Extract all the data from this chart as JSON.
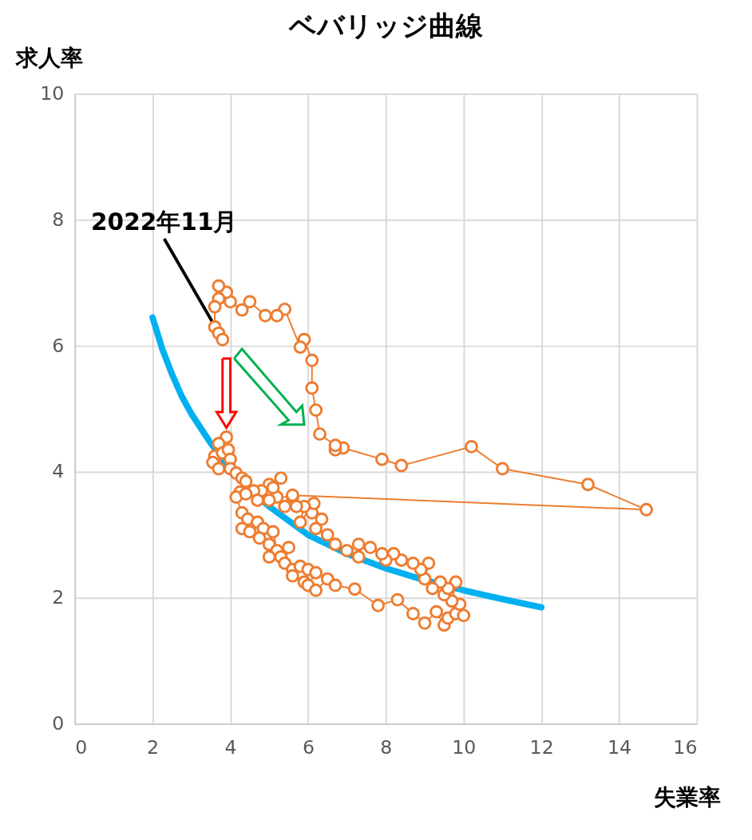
{
  "chart_data": {
    "type": "line",
    "title": "ベバリッジ曲線",
    "xlabel": "失業率",
    "ylabel": "求人率",
    "xlim": [
      0,
      16
    ],
    "xticks": [
      0,
      2,
      4,
      6,
      8,
      10,
      12,
      14,
      16
    ],
    "ylim": [
      0,
      10
    ],
    "yticks": [
      0,
      2,
      4,
      6,
      8,
      10
    ],
    "grid": true,
    "marker": "circle",
    "annotations": [
      {
        "text": "2022年11月",
        "x": 3.8,
        "y": 6.1
      }
    ],
    "series": [
      {
        "color": "#00b0f0",
        "marker": "none",
        "x": [
          2,
          2.25,
          2.5,
          2.75,
          3,
          3.5,
          4,
          4.5,
          5,
          6,
          7,
          8,
          9,
          10,
          11,
          12
        ],
        "values": [
          6.45,
          5.95,
          5.55,
          5.2,
          4.92,
          4.45,
          4.05,
          3.72,
          3.45,
          3.0,
          2.7,
          2.47,
          2.28,
          2.12,
          1.98,
          1.85
        ]
      },
      {
        "color": "#ed7d31",
        "x": [
          3.9,
          3.7,
          3.6,
          3.55,
          3.7,
          3.8,
          3.95,
          4.0,
          4.0,
          4.15,
          4.3,
          4.4,
          4.25,
          4.15,
          4.3,
          4.45,
          4.3,
          4.5,
          4.7,
          4.85,
          4.75,
          5.0,
          5.1,
          5.2,
          5.0,
          5.3,
          5.5,
          5.4,
          5.6,
          5.8,
          5.6,
          5.9,
          6.0,
          6.2,
          6.0,
          6.2,
          6.5,
          6.7,
          7.2,
          7.8,
          8.3,
          8.7,
          9.0,
          9.3,
          9.5,
          9.6,
          9.8,
          10.0,
          9.9,
          9.7,
          9.8,
          9.5,
          9.6,
          9.4,
          9.2,
          9.0,
          9.1,
          8.9,
          8.7,
          8.4,
          8.2,
          8.0,
          7.9,
          7.6,
          7.3,
          7.3,
          7.0,
          6.7,
          6.5,
          6.2,
          6.35,
          6.1,
          6.15,
          5.8,
          5.9,
          5.6,
          5.7,
          5.4,
          5.2,
          5.0,
          5.3,
          5.1,
          4.8,
          4.6,
          4.4,
          4.7,
          5.0,
          5.6,
          14.7,
          13.2,
          11.0,
          10.2,
          8.4,
          7.9,
          6.9,
          6.7,
          6.7,
          6.3,
          6.2,
          6.1,
          6.1,
          5.9,
          5.8,
          5.4,
          5.2,
          4.9,
          4.5,
          4.3,
          4.0,
          3.9,
          3.7,
          3.7,
          3.6,
          3.6,
          3.7,
          3.8
        ],
        "values": [
          4.55,
          4.45,
          4.25,
          4.15,
          4.05,
          4.3,
          4.35,
          4.2,
          4.05,
          3.98,
          3.9,
          3.85,
          3.68,
          3.6,
          3.35,
          3.25,
          3.1,
          3.05,
          3.2,
          3.1,
          2.95,
          2.85,
          3.05,
          2.75,
          2.65,
          2.65,
          2.8,
          2.55,
          2.45,
          2.5,
          2.35,
          2.25,
          2.45,
          2.4,
          2.2,
          2.12,
          2.3,
          2.2,
          2.14,
          1.88,
          1.97,
          1.75,
          1.6,
          1.78,
          1.57,
          1.68,
          1.75,
          1.72,
          1.9,
          1.95,
          2.25,
          2.05,
          2.15,
          2.25,
          2.15,
          2.3,
          2.55,
          2.45,
          2.55,
          2.6,
          2.7,
          2.6,
          2.7,
          2.8,
          2.85,
          2.65,
          2.75,
          2.85,
          3.0,
          3.1,
          3.25,
          3.35,
          3.5,
          3.2,
          3.45,
          3.6,
          3.45,
          3.45,
          3.6,
          3.8,
          3.9,
          3.75,
          3.7,
          3.7,
          3.65,
          3.55,
          3.55,
          3.63,
          3.4,
          3.8,
          4.05,
          4.4,
          4.1,
          4.2,
          4.38,
          4.35,
          4.42,
          4.6,
          4.98,
          5.33,
          5.77,
          6.1,
          5.98,
          6.58,
          6.48,
          6.48,
          6.7,
          6.57,
          6.7,
          6.85,
          6.75,
          6.95,
          6.62,
          6.3,
          6.2,
          6.1
        ]
      }
    ]
  }
}
